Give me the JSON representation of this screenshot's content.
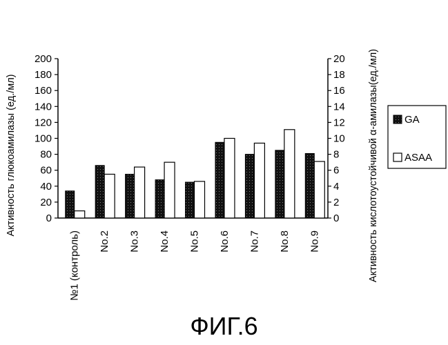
{
  "figure_label": "ФИГ.6",
  "chart_data": {
    "type": "bar",
    "categories": [
      "№1 (контроль)",
      "No.2",
      "No.3",
      "No.4",
      "No.5",
      "No.6",
      "No.7",
      "No.8",
      "No.9"
    ],
    "series": [
      {
        "name": "GA",
        "axis": "left",
        "color": "#000000",
        "values": [
          34,
          66,
          55,
          48,
          45,
          95,
          80,
          85,
          81
        ]
      },
      {
        "name": "ASAA",
        "axis": "right",
        "color": "#ffffff",
        "values": [
          0.9,
          5.5,
          6.4,
          7.0,
          4.6,
          10.0,
          9.4,
          11.1,
          7.1
        ]
      }
    ],
    "ylabel_left": "Активность глюкоамилазы (ед./мл)",
    "ylabel_right": "Активность кислотоустойчивой α-амилазы(ед./мл)",
    "ylim_left": [
      0,
      200
    ],
    "ylim_right": [
      0,
      20
    ],
    "yticks_left": [
      0,
      20,
      40,
      60,
      80,
      100,
      120,
      140,
      160,
      180,
      200
    ],
    "yticks_right": [
      0,
      2,
      4,
      6,
      8,
      10,
      12,
      14,
      16,
      18,
      20
    ],
    "grid": false,
    "legend_position": "right"
  }
}
